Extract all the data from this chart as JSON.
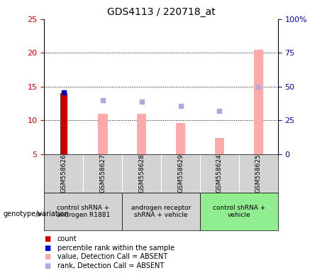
{
  "title": "GDS4113 / 220718_at",
  "samples": [
    "GSM558626",
    "GSM558627",
    "GSM558628",
    "GSM558629",
    "GSM558624",
    "GSM558625"
  ],
  "count_values": [
    14,
    null,
    null,
    null,
    null,
    null
  ],
  "count_color": "#cc0000",
  "percentile_values": [
    14,
    null,
    null,
    null,
    null,
    null
  ],
  "percentile_color": "#0000cc",
  "value_absent": [
    null,
    11,
    11,
    9.6,
    7.4,
    20.5
  ],
  "value_absent_color": "#ffaaaa",
  "rank_absent": [
    null,
    13,
    12.8,
    12.2,
    11.4,
    15
  ],
  "rank_absent_color": "#aaaadd",
  "ylim_left": [
    5,
    25
  ],
  "ylim_right": [
    0,
    100
  ],
  "yticks_left": [
    5,
    10,
    15,
    20,
    25
  ],
  "yticks_right": [
    0,
    25,
    50,
    75,
    100
  ],
  "ytick_labels_right": [
    "0",
    "25",
    "50",
    "75",
    "100%"
  ],
  "background_color": "#ffffff",
  "title_fontsize": 10,
  "group_labels": [
    "control shRNA +\nandrogen R1881",
    "androgen receptor\nshRNA + vehicle",
    "control shRNA +\nvehicle"
  ],
  "group_colors": [
    "#d3d3d3",
    "#d3d3d3",
    "#90EE90"
  ],
  "group_ranges": [
    [
      0,
      1
    ],
    [
      2,
      3
    ],
    [
      4,
      5
    ]
  ]
}
